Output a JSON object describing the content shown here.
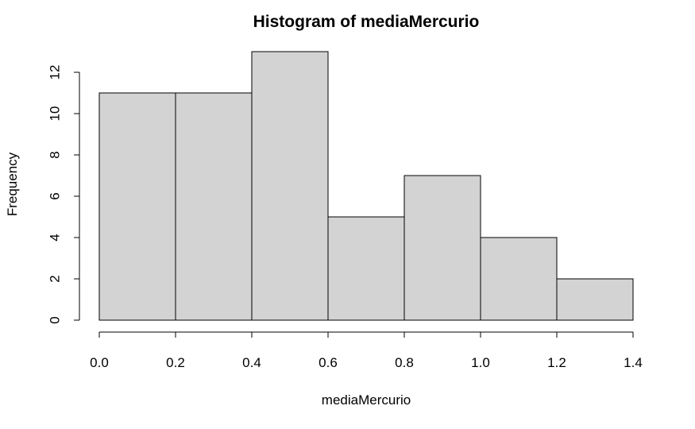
{
  "chart_data": {
    "type": "bar",
    "title": "Histogram of mediaMercurio",
    "xlabel": "mediaMercurio",
    "ylabel": "Frequency",
    "bin_edges": [
      0.0,
      0.2,
      0.4,
      0.6,
      0.8,
      1.0,
      1.2,
      1.4
    ],
    "values": [
      11,
      11,
      13,
      5,
      7,
      4,
      2
    ],
    "xlim": [
      0.0,
      1.4
    ],
    "ylim": [
      0,
      13
    ],
    "x_ticks": [
      "0.0",
      "0.2",
      "0.4",
      "0.6",
      "0.8",
      "1.0",
      "1.2",
      "1.4"
    ],
    "y_ticks": [
      "0",
      "2",
      "4",
      "6",
      "8",
      "10",
      "12"
    ],
    "grid": false,
    "bar_color": "#d3d3d3",
    "edge_color": "#000000"
  }
}
